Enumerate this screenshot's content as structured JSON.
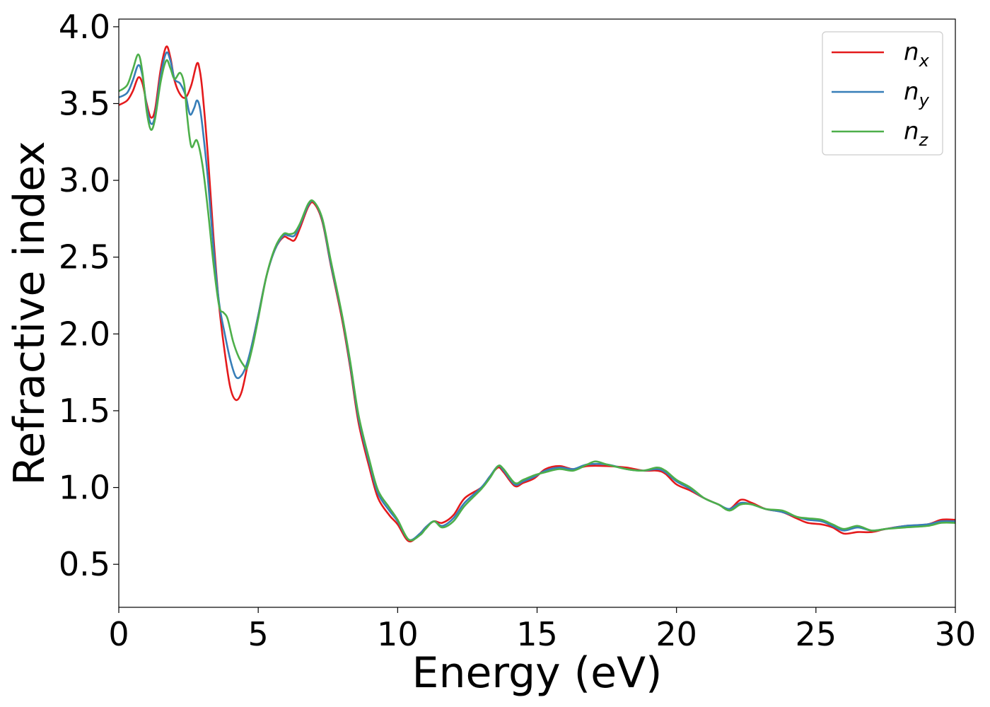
{
  "chart_data": {
    "type": "line",
    "xlabel": "Energy (eV)",
    "ylabel": "Refractive index",
    "xlim": [
      0,
      30
    ],
    "ylim": [
      0.22,
      4.05
    ],
    "xticks": [
      "0",
      "5",
      "10",
      "15",
      "20",
      "25",
      "30"
    ],
    "yticks": [
      "0.5",
      "1.0",
      "1.5",
      "2.0",
      "2.5",
      "3.0",
      "3.5",
      "4.0"
    ],
    "grid": false,
    "legend_position": "top-right",
    "series": [
      {
        "name": "n",
        "subscript": "x",
        "color": "#e41a1c",
        "points": [
          [
            0,
            3.49
          ],
          [
            0.3,
            3.52
          ],
          [
            0.5,
            3.58
          ],
          [
            0.7,
            3.67
          ],
          [
            0.85,
            3.63
          ],
          [
            1.0,
            3.5
          ],
          [
            1.15,
            3.41
          ],
          [
            1.3,
            3.46
          ],
          [
            1.5,
            3.72
          ],
          [
            1.7,
            3.87
          ],
          [
            1.85,
            3.8
          ],
          [
            2.0,
            3.65
          ],
          [
            2.2,
            3.56
          ],
          [
            2.4,
            3.54
          ],
          [
            2.6,
            3.62
          ],
          [
            2.8,
            3.76
          ],
          [
            2.9,
            3.72
          ],
          [
            3.0,
            3.58
          ],
          [
            3.2,
            3.15
          ],
          [
            3.4,
            2.62
          ],
          [
            3.6,
            2.18
          ],
          [
            3.8,
            1.88
          ],
          [
            4.0,
            1.65
          ],
          [
            4.2,
            1.57
          ],
          [
            4.4,
            1.62
          ],
          [
            4.6,
            1.78
          ],
          [
            4.8,
            1.95
          ],
          [
            5.0,
            2.12
          ],
          [
            5.3,
            2.38
          ],
          [
            5.6,
            2.55
          ],
          [
            5.9,
            2.63
          ],
          [
            6.1,
            2.62
          ],
          [
            6.3,
            2.61
          ],
          [
            6.5,
            2.69
          ],
          [
            6.8,
            2.83
          ],
          [
            7.0,
            2.85
          ],
          [
            7.3,
            2.73
          ],
          [
            7.6,
            2.45
          ],
          [
            8.0,
            2.1
          ],
          [
            8.3,
            1.78
          ],
          [
            8.6,
            1.42
          ],
          [
            9.0,
            1.12
          ],
          [
            9.3,
            0.93
          ],
          [
            9.7,
            0.82
          ],
          [
            10.0,
            0.76
          ],
          [
            10.4,
            0.65
          ],
          [
            10.8,
            0.7
          ],
          [
            11.0,
            0.74
          ],
          [
            11.3,
            0.78
          ],
          [
            11.6,
            0.77
          ],
          [
            12.0,
            0.82
          ],
          [
            12.4,
            0.93
          ],
          [
            13.0,
            1.0
          ],
          [
            13.3,
            1.07
          ],
          [
            13.6,
            1.13
          ],
          [
            13.8,
            1.1
          ],
          [
            14.2,
            1.01
          ],
          [
            14.5,
            1.03
          ],
          [
            14.9,
            1.06
          ],
          [
            15.3,
            1.12
          ],
          [
            15.8,
            1.14
          ],
          [
            16.3,
            1.12
          ],
          [
            16.8,
            1.14
          ],
          [
            17.5,
            1.14
          ],
          [
            18.2,
            1.13
          ],
          [
            18.8,
            1.11
          ],
          [
            19.3,
            1.11
          ],
          [
            19.6,
            1.09
          ],
          [
            20.0,
            1.02
          ],
          [
            20.5,
            0.98
          ],
          [
            21.0,
            0.93
          ],
          [
            21.5,
            0.89
          ],
          [
            21.9,
            0.86
          ],
          [
            22.3,
            0.92
          ],
          [
            22.7,
            0.9
          ],
          [
            23.2,
            0.86
          ],
          [
            23.8,
            0.84
          ],
          [
            24.3,
            0.8
          ],
          [
            24.7,
            0.77
          ],
          [
            25.2,
            0.76
          ],
          [
            25.6,
            0.74
          ],
          [
            26.0,
            0.7
          ],
          [
            26.5,
            0.71
          ],
          [
            27.0,
            0.71
          ],
          [
            27.5,
            0.73
          ],
          [
            28.2,
            0.75
          ],
          [
            29.0,
            0.76
          ],
          [
            29.5,
            0.79
          ],
          [
            30.0,
            0.79
          ]
        ]
      },
      {
        "name": "n",
        "subscript": "y",
        "color": "#377eb8",
        "points": [
          [
            0,
            3.54
          ],
          [
            0.3,
            3.57
          ],
          [
            0.5,
            3.65
          ],
          [
            0.7,
            3.75
          ],
          [
            0.85,
            3.68
          ],
          [
            1.0,
            3.48
          ],
          [
            1.15,
            3.37
          ],
          [
            1.3,
            3.42
          ],
          [
            1.5,
            3.68
          ],
          [
            1.7,
            3.83
          ],
          [
            1.85,
            3.78
          ],
          [
            2.0,
            3.66
          ],
          [
            2.2,
            3.63
          ],
          [
            2.4,
            3.55
          ],
          [
            2.55,
            3.43
          ],
          [
            2.7,
            3.47
          ],
          [
            2.8,
            3.52
          ],
          [
            2.9,
            3.48
          ],
          [
            3.0,
            3.35
          ],
          [
            3.2,
            3.0
          ],
          [
            3.4,
            2.55
          ],
          [
            3.6,
            2.2
          ],
          [
            3.8,
            2.0
          ],
          [
            4.0,
            1.83
          ],
          [
            4.2,
            1.72
          ],
          [
            4.4,
            1.73
          ],
          [
            4.6,
            1.81
          ],
          [
            4.8,
            1.95
          ],
          [
            5.0,
            2.12
          ],
          [
            5.3,
            2.38
          ],
          [
            5.6,
            2.55
          ],
          [
            5.9,
            2.64
          ],
          [
            6.1,
            2.64
          ],
          [
            6.3,
            2.64
          ],
          [
            6.5,
            2.71
          ],
          [
            6.8,
            2.84
          ],
          [
            7.0,
            2.86
          ],
          [
            7.3,
            2.74
          ],
          [
            7.6,
            2.46
          ],
          [
            8.0,
            2.12
          ],
          [
            8.3,
            1.8
          ],
          [
            8.6,
            1.45
          ],
          [
            9.0,
            1.15
          ],
          [
            9.3,
            0.96
          ],
          [
            9.7,
            0.85
          ],
          [
            10.0,
            0.78
          ],
          [
            10.4,
            0.66
          ],
          [
            10.8,
            0.7
          ],
          [
            11.0,
            0.74
          ],
          [
            11.3,
            0.78
          ],
          [
            11.6,
            0.75
          ],
          [
            12.0,
            0.8
          ],
          [
            12.4,
            0.9
          ],
          [
            13.0,
            1.0
          ],
          [
            13.3,
            1.07
          ],
          [
            13.6,
            1.14
          ],
          [
            13.8,
            1.11
          ],
          [
            14.2,
            1.02
          ],
          [
            14.5,
            1.04
          ],
          [
            14.9,
            1.07
          ],
          [
            15.3,
            1.11
          ],
          [
            15.8,
            1.13
          ],
          [
            16.3,
            1.12
          ],
          [
            16.8,
            1.15
          ],
          [
            17.5,
            1.15
          ],
          [
            18.2,
            1.12
          ],
          [
            18.8,
            1.11
          ],
          [
            19.3,
            1.12
          ],
          [
            19.6,
            1.1
          ],
          [
            20.0,
            1.04
          ],
          [
            20.5,
            0.99
          ],
          [
            21.0,
            0.93
          ],
          [
            21.5,
            0.89
          ],
          [
            21.9,
            0.86
          ],
          [
            22.3,
            0.9
          ],
          [
            22.7,
            0.89
          ],
          [
            23.2,
            0.86
          ],
          [
            23.8,
            0.84
          ],
          [
            24.3,
            0.81
          ],
          [
            24.7,
            0.79
          ],
          [
            25.2,
            0.78
          ],
          [
            25.6,
            0.75
          ],
          [
            26.0,
            0.72
          ],
          [
            26.5,
            0.74
          ],
          [
            27.0,
            0.72
          ],
          [
            27.5,
            0.73
          ],
          [
            28.2,
            0.75
          ],
          [
            29.0,
            0.76
          ],
          [
            29.5,
            0.78
          ],
          [
            30.0,
            0.78
          ]
        ]
      },
      {
        "name": "n",
        "subscript": "z",
        "color": "#4daf4a",
        "points": [
          [
            0,
            3.58
          ],
          [
            0.3,
            3.62
          ],
          [
            0.5,
            3.72
          ],
          [
            0.7,
            3.82
          ],
          [
            0.85,
            3.7
          ],
          [
            1.0,
            3.45
          ],
          [
            1.15,
            3.33
          ],
          [
            1.3,
            3.4
          ],
          [
            1.5,
            3.64
          ],
          [
            1.7,
            3.78
          ],
          [
            1.85,
            3.73
          ],
          [
            2.0,
            3.66
          ],
          [
            2.2,
            3.7
          ],
          [
            2.35,
            3.62
          ],
          [
            2.45,
            3.42
          ],
          [
            2.6,
            3.22
          ],
          [
            2.8,
            3.26
          ],
          [
            3.0,
            3.1
          ],
          [
            3.2,
            2.8
          ],
          [
            3.4,
            2.45
          ],
          [
            3.6,
            2.18
          ],
          [
            3.75,
            2.14
          ],
          [
            3.9,
            2.1
          ],
          [
            4.1,
            1.95
          ],
          [
            4.3,
            1.85
          ],
          [
            4.5,
            1.79
          ],
          [
            4.6,
            1.78
          ],
          [
            4.8,
            1.92
          ],
          [
            5.0,
            2.1
          ],
          [
            5.3,
            2.38
          ],
          [
            5.6,
            2.56
          ],
          [
            5.9,
            2.65
          ],
          [
            6.1,
            2.65
          ],
          [
            6.3,
            2.66
          ],
          [
            6.5,
            2.72
          ],
          [
            6.8,
            2.85
          ],
          [
            7.0,
            2.86
          ],
          [
            7.3,
            2.75
          ],
          [
            7.6,
            2.48
          ],
          [
            8.0,
            2.13
          ],
          [
            8.3,
            1.82
          ],
          [
            8.6,
            1.47
          ],
          [
            9.0,
            1.17
          ],
          [
            9.3,
            0.98
          ],
          [
            9.7,
            0.87
          ],
          [
            10.0,
            0.79
          ],
          [
            10.4,
            0.66
          ],
          [
            10.8,
            0.69
          ],
          [
            11.0,
            0.73
          ],
          [
            11.3,
            0.78
          ],
          [
            11.6,
            0.74
          ],
          [
            12.0,
            0.78
          ],
          [
            12.4,
            0.88
          ],
          [
            13.0,
            0.99
          ],
          [
            13.3,
            1.06
          ],
          [
            13.6,
            1.14
          ],
          [
            13.8,
            1.12
          ],
          [
            14.2,
            1.03
          ],
          [
            14.5,
            1.05
          ],
          [
            14.9,
            1.08
          ],
          [
            15.3,
            1.1
          ],
          [
            15.8,
            1.12
          ],
          [
            16.3,
            1.11
          ],
          [
            16.8,
            1.15
          ],
          [
            17.1,
            1.17
          ],
          [
            17.5,
            1.15
          ],
          [
            18.2,
            1.12
          ],
          [
            18.8,
            1.11
          ],
          [
            19.3,
            1.13
          ],
          [
            19.6,
            1.11
          ],
          [
            20.0,
            1.05
          ],
          [
            20.5,
            1.0
          ],
          [
            21.0,
            0.93
          ],
          [
            21.5,
            0.89
          ],
          [
            21.9,
            0.85
          ],
          [
            22.3,
            0.89
          ],
          [
            22.7,
            0.89
          ],
          [
            23.2,
            0.86
          ],
          [
            23.8,
            0.85
          ],
          [
            24.3,
            0.81
          ],
          [
            24.7,
            0.8
          ],
          [
            25.2,
            0.79
          ],
          [
            25.6,
            0.76
          ],
          [
            26.0,
            0.73
          ],
          [
            26.5,
            0.75
          ],
          [
            27.0,
            0.72
          ],
          [
            27.5,
            0.73
          ],
          [
            28.2,
            0.74
          ],
          [
            29.0,
            0.75
          ],
          [
            29.5,
            0.77
          ],
          [
            30.0,
            0.77
          ]
        ]
      }
    ]
  }
}
